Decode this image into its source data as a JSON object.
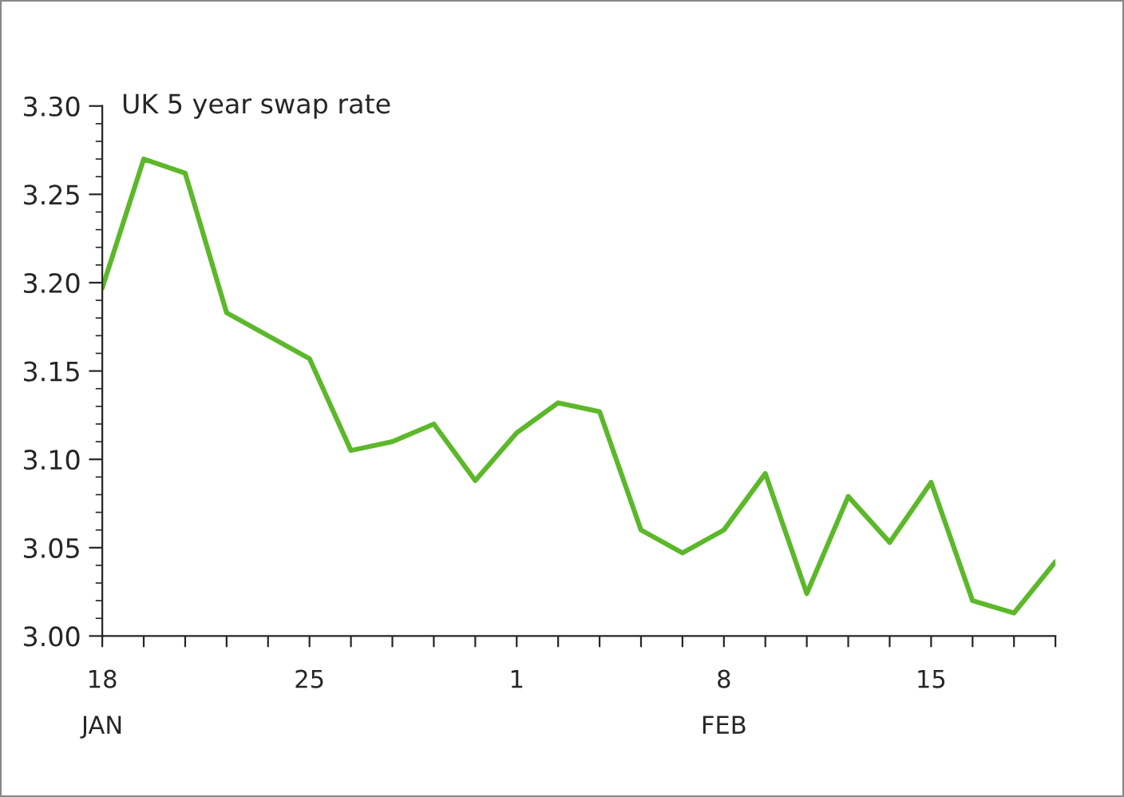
{
  "chart_data": {
    "type": "line",
    "title": "UK 5 year swap rate",
    "categories": [
      "18\nJAN",
      null,
      null,
      null,
      null,
      "25",
      null,
      null,
      null,
      null,
      "1",
      null,
      null,
      null,
      null,
      "8\nFEB",
      null,
      null,
      null,
      null,
      "15",
      null,
      null,
      null
    ],
    "series": [
      {
        "color": "#5cb82a",
        "values": [
          3.197,
          3.27,
          3.262,
          3.183,
          3.17,
          3.157,
          3.105,
          3.11,
          3.12,
          3.088,
          3.115,
          3.132,
          3.127,
          3.06,
          3.047,
          3.06,
          3.092,
          3.024,
          3.079,
          3.053,
          3.087,
          3.02,
          3.013,
          3.042
        ]
      }
    ],
    "ylim": [
      3.0,
      3.3
    ],
    "yticks": [
      {
        "value": 3.0,
        "label": "3.00"
      },
      {
        "value": 3.05,
        "label": "3.05"
      },
      {
        "value": 3.1,
        "label": "3.10"
      },
      {
        "value": 3.15,
        "label": "3.15"
      },
      {
        "value": 3.2,
        "label": "3.20"
      },
      {
        "value": 3.25,
        "label": "3.25"
      },
      {
        "value": 3.3,
        "label": "3.30"
      }
    ],
    "grid": false,
    "legend": false,
    "marker": "none",
    "line_style": "solid"
  }
}
